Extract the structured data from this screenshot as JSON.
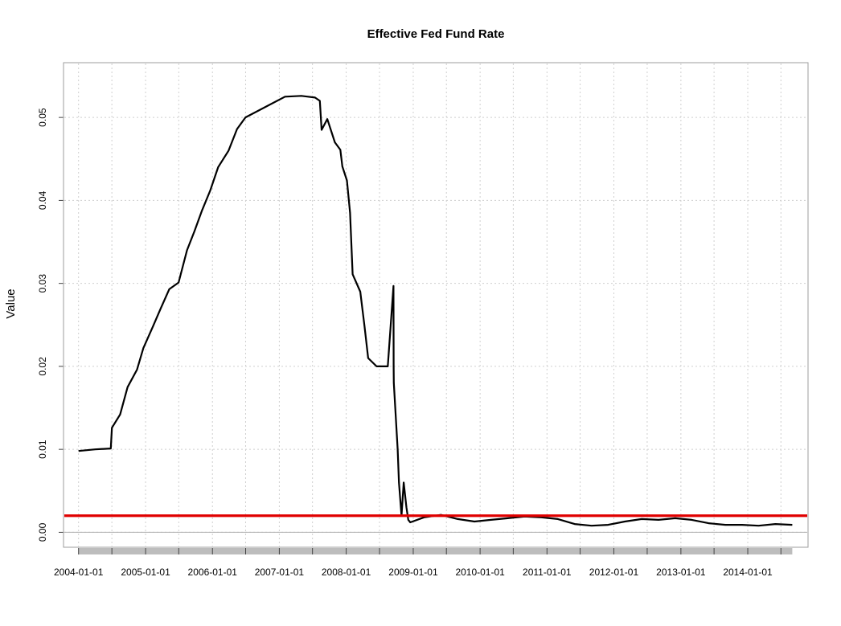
{
  "chart_data": {
    "type": "line",
    "title": "Effective Fed Fund Rate",
    "ylabel": "Value",
    "xlabel": "",
    "xlim": [
      "2003-10-11",
      "2014-11-26"
    ],
    "ylim": [
      -0.0018,
      0.0566
    ],
    "yticks": [
      0.0,
      0.01,
      0.02,
      0.03,
      0.04,
      0.05
    ],
    "ytick_labels": [
      "0.00",
      "0.01",
      "0.02",
      "0.03",
      "0.04",
      "0.05"
    ],
    "xtick_labels": [
      "2004-01-01",
      "2005-01-01",
      "2006-01-01",
      "2007-01-01",
      "2008-01-01",
      "2009-01-01",
      "2010-01-01",
      "2011-01-01",
      "2012-01-01",
      "2013-01-01",
      "2014-01-01"
    ],
    "grid": true,
    "horizontal_line": {
      "y": 0.002,
      "color": "#e00000"
    },
    "series_color": "#000000",
    "series": [
      {
        "x": [
          "2004-01-01",
          "2004-04-01",
          "2004-06-25",
          "2004-07-01",
          "2004-08-15",
          "2004-09-25",
          "2004-11-15",
          "2004-12-20",
          "2005-02-10",
          "2005-03-25",
          "2005-05-10",
          "2005-06-30",
          "2005-08-15",
          "2005-09-25",
          "2005-11-05",
          "2005-12-20",
          "2006-02-01",
          "2006-03-30",
          "2006-05-15",
          "2006-06-30",
          "2007-02-01",
          "2007-05-01",
          "2007-07-15",
          "2007-08-10",
          "2007-08-20",
          "2007-09-20",
          "2007-10-31",
          "2007-11-30",
          "2007-12-11",
          "2008-01-05",
          "2008-01-22",
          "2008-02-05",
          "2008-03-18",
          "2008-04-10",
          "2008-04-30",
          "2008-06-15",
          "2008-08-15",
          "2008-09-15",
          "2008-09-16",
          "2008-09-17",
          "2008-09-25",
          "2008-10-08",
          "2008-10-15",
          "2008-10-29",
          "2008-11-10",
          "2008-11-25",
          "2008-12-05",
          "2008-12-16",
          "2009-03-01",
          "2009-06-01",
          "2009-09-01",
          "2009-12-01",
          "2010-03-01",
          "2010-06-01",
          "2010-09-01",
          "2010-12-01",
          "2011-03-01",
          "2011-06-01",
          "2011-09-01",
          "2011-12-01",
          "2012-03-01",
          "2012-06-01",
          "2012-09-01",
          "2012-12-01",
          "2013-03-01",
          "2013-06-01",
          "2013-09-01",
          "2013-12-01",
          "2014-03-01",
          "2014-06-01",
          "2014-09-01"
        ],
        "values": [
          0.0098,
          0.01,
          0.0101,
          0.0126,
          0.0142,
          0.0175,
          0.0196,
          0.0222,
          0.0248,
          0.027,
          0.0293,
          0.0301,
          0.034,
          0.0363,
          0.0388,
          0.0412,
          0.044,
          0.046,
          0.0486,
          0.05,
          0.0525,
          0.0526,
          0.0524,
          0.052,
          0.0485,
          0.0498,
          0.047,
          0.0461,
          0.0441,
          0.0424,
          0.0385,
          0.0311,
          0.029,
          0.0248,
          0.021,
          0.02,
          0.02,
          0.0297,
          0.02,
          0.018,
          0.015,
          0.01,
          0.006,
          0.002,
          0.006,
          0.003,
          0.0015,
          0.0012,
          0.0018,
          0.0021,
          0.0016,
          0.0013,
          0.0015,
          0.0017,
          0.0019,
          0.0018,
          0.0016,
          0.001,
          0.0008,
          0.0009,
          0.0013,
          0.0016,
          0.0015,
          0.0017,
          0.0015,
          0.0011,
          0.0009,
          0.0009,
          0.0008,
          0.001,
          0.0009
        ]
      }
    ]
  }
}
